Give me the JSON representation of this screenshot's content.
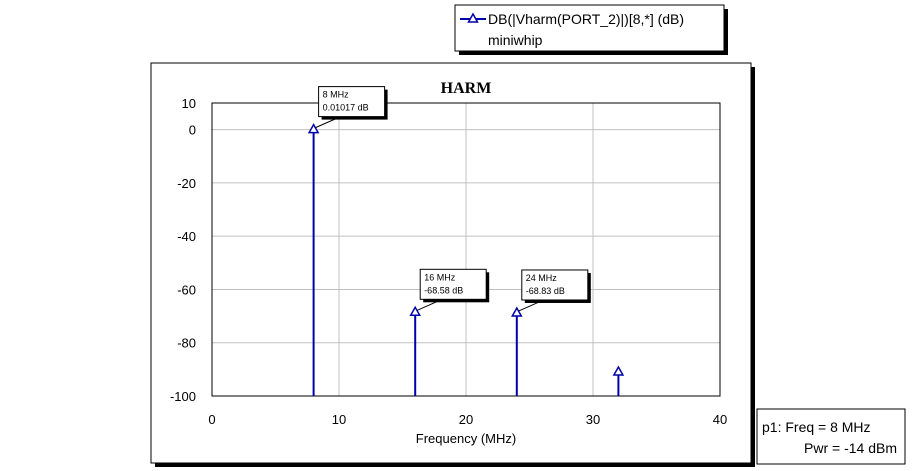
{
  "legend": {
    "entry": "DB(|Vharm(PORT_2)|)[8,*] (dB)",
    "subtext": "miniwhip",
    "color": "#0000aa"
  },
  "info_box": {
    "line1": "p1: Freq = 8 MHz",
    "line2": "Pwr = -14 dBm"
  },
  "chart_data": {
    "type": "bar",
    "title": "HARM",
    "xlabel": "Frequency (MHz)",
    "ylabel": "",
    "xlim": [
      0,
      40
    ],
    "ylim": [
      -100,
      10
    ],
    "xticks": [
      0,
      10,
      20,
      30,
      40
    ],
    "yticks": [
      10,
      0,
      -20,
      -40,
      -60,
      -80,
      -100
    ],
    "grid": true,
    "legend_position": "top-right",
    "series": [
      {
        "x": [
          8,
          16,
          24,
          32
        ],
        "y": [
          0.01017,
          -68.58,
          -68.83,
          -91
        ]
      }
    ],
    "annotations": [
      {
        "x": 8,
        "y": 0.01017,
        "line1": "8 MHz",
        "line2": "0.01017 dB"
      },
      {
        "x": 16,
        "y": -68.58,
        "line1": "16 MHz",
        "line2": "-68.58 dB"
      },
      {
        "x": 24,
        "y": -68.83,
        "line1": "24 MHz",
        "line2": "-68.83 dB"
      }
    ]
  }
}
